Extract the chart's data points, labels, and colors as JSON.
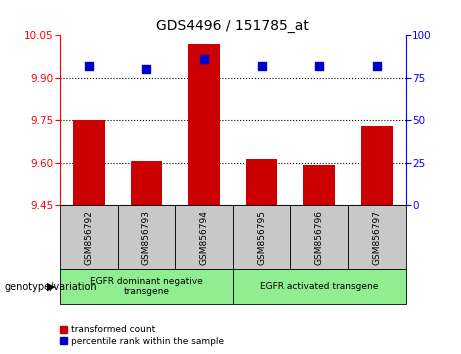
{
  "title": "GDS4496 / 151785_at",
  "samples": [
    "GSM856792",
    "GSM856793",
    "GSM856794",
    "GSM856795",
    "GSM856796",
    "GSM856797"
  ],
  "bar_values": [
    9.75,
    9.605,
    10.02,
    9.615,
    9.592,
    9.73
  ],
  "scatter_values": [
    82,
    80,
    86,
    82,
    82,
    82
  ],
  "ylim_left": [
    9.45,
    10.05
  ],
  "ylim_right": [
    0,
    100
  ],
  "yticks_left": [
    9.45,
    9.6,
    9.75,
    9.9,
    10.05
  ],
  "yticks_right": [
    0,
    25,
    50,
    75,
    100
  ],
  "grid_values": [
    9.9,
    9.75,
    9.6
  ],
  "bar_color": "#cc0000",
  "scatter_color": "#0000cc",
  "group1_label": "EGFR dominant negative\ntransgene",
  "group2_label": "EGFR activated transgene",
  "group_color": "#90ee90",
  "sample_bg_color": "#c8c8c8",
  "legend_red_label": "transformed count",
  "legend_blue_label": "percentile rank within the sample",
  "xlabel_left": "genotype/variation",
  "bar_width": 0.55
}
